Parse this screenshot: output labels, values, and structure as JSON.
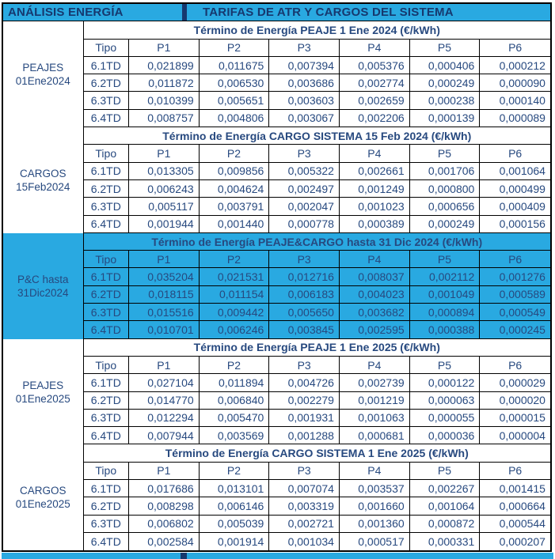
{
  "banner": {
    "left_title": "ANÁLISIS ENERGÍA",
    "right_title": "TARIFAS DE ATR Y CARGOS DEL SISTEMA"
  },
  "table": {
    "columns": [
      "Tipo",
      "P1",
      "P2",
      "P3",
      "P4",
      "P5",
      "P6"
    ],
    "unit": "€/kWh",
    "sections": [
      {
        "label_lines": [
          "PEAJES",
          "01Ene2024"
        ],
        "title": "Término de Energía PEAJE 1 Ene 2024 (€/kWh)",
        "highlighted": false,
        "rows": [
          {
            "tipo": "6.1TD",
            "values": [
              "0,021899",
              "0,011675",
              "0,007394",
              "0,005376",
              "0,000406",
              "0,000212"
            ]
          },
          {
            "tipo": "6.2TD",
            "values": [
              "0,011872",
              "0,006530",
              "0,003686",
              "0,002774",
              "0,000249",
              "0,000090"
            ]
          },
          {
            "tipo": "6.3TD",
            "values": [
              "0,010399",
              "0,005651",
              "0,003603",
              "0,002659",
              "0,000238",
              "0,000140"
            ]
          },
          {
            "tipo": "6.4TD",
            "values": [
              "0,008757",
              "0,004806",
              "0,003067",
              "0,002206",
              "0,000139",
              "0,000089"
            ]
          }
        ]
      },
      {
        "label_lines": [
          "CARGOS",
          "15Feb2024"
        ],
        "title": "Término de Energía CARGO SISTEMA 15 Feb 2024 (€/kWh)",
        "highlighted": false,
        "rows": [
          {
            "tipo": "6.1TD",
            "values": [
              "0,013305",
              "0,009856",
              "0,005322",
              "0,002661",
              "0,001706",
              "0,001064"
            ]
          },
          {
            "tipo": "6.2TD",
            "values": [
              "0,006243",
              "0,004624",
              "0,002497",
              "0,001249",
              "0,000800",
              "0,000499"
            ]
          },
          {
            "tipo": "6.3TD",
            "values": [
              "0,005117",
              "0,003791",
              "0,002047",
              "0,001023",
              "0,000656",
              "0,000409"
            ]
          },
          {
            "tipo": "6.4TD",
            "values": [
              "0,001944",
              "0,001440",
              "0,000778",
              "0,000389",
              "0,000249",
              "0,000156"
            ]
          }
        ]
      },
      {
        "label_lines": [
          "P&C hasta",
          "31Dic2024"
        ],
        "title": "Término de Energía PEAJE&CARGO hasta 31 Dic 2024 (€/kWh)",
        "highlighted": true,
        "rows": [
          {
            "tipo": "6.1TD",
            "values": [
              "0,035204",
              "0,021531",
              "0,012716",
              "0,008037",
              "0,002112",
              "0,001276"
            ]
          },
          {
            "tipo": "6.2TD",
            "values": [
              "0,018115",
              "0,011154",
              "0,006183",
              "0,004023",
              "0,001049",
              "0,000589"
            ]
          },
          {
            "tipo": "6.3TD",
            "values": [
              "0,015516",
              "0,009442",
              "0,005650",
              "0,003682",
              "0,000894",
              "0,000549"
            ]
          },
          {
            "tipo": "6.4TD",
            "values": [
              "0,010701",
              "0,006246",
              "0,003845",
              "0,002595",
              "0,000388",
              "0,000245"
            ]
          }
        ]
      },
      {
        "label_lines": [
          "PEAJES",
          "01Ene2025"
        ],
        "title": "Término de Energía PEAJE 1 Ene 2025 (€/kWh)",
        "highlighted": false,
        "rows": [
          {
            "tipo": "6.1TD",
            "values": [
              "0,027104",
              "0,011894",
              "0,004726",
              "0,002739",
              "0,000122",
              "0,000029"
            ]
          },
          {
            "tipo": "6.2TD",
            "values": [
              "0,014770",
              "0,006840",
              "0,002279",
              "0,001219",
              "0,000063",
              "0,000020"
            ]
          },
          {
            "tipo": "6.3TD",
            "values": [
              "0,012294",
              "0,005470",
              "0,001931",
              "0,001063",
              "0,000055",
              "0,000015"
            ]
          },
          {
            "tipo": "6.4TD",
            "values": [
              "0,007944",
              "0,003569",
              "0,001288",
              "0,000681",
              "0,000036",
              "0,000004"
            ]
          }
        ]
      },
      {
        "label_lines": [
          "CARGOS",
          "01Ene2025"
        ],
        "title": "Término de Energía CARGO SISTEMA 1 Ene 2025 (€/kWh)",
        "highlighted": false,
        "rows": [
          {
            "tipo": "6.1TD",
            "values": [
              "0,017686",
              "0,013101",
              "0,007074",
              "0,003537",
              "0,002267",
              "0,001415"
            ]
          },
          {
            "tipo": "6.2TD",
            "values": [
              "0,008298",
              "0,006146",
              "0,003319",
              "0,001660",
              "0,001064",
              "0,000664"
            ]
          },
          {
            "tipo": "6.3TD",
            "values": [
              "0,006802",
              "0,005039",
              "0,002721",
              "0,001360",
              "0,000872",
              "0,000544"
            ]
          },
          {
            "tipo": "6.4TD",
            "values": [
              "0,002584",
              "0,001914",
              "0,001034",
              "0,000517",
              "0,000331",
              "0,000207"
            ]
          }
        ]
      }
    ]
  },
  "colors": {
    "accent_cyan": "#29A9E1",
    "text_navy": "#27497F",
    "banner_text_navy": "#16386E",
    "grid_border": "#000000"
  }
}
